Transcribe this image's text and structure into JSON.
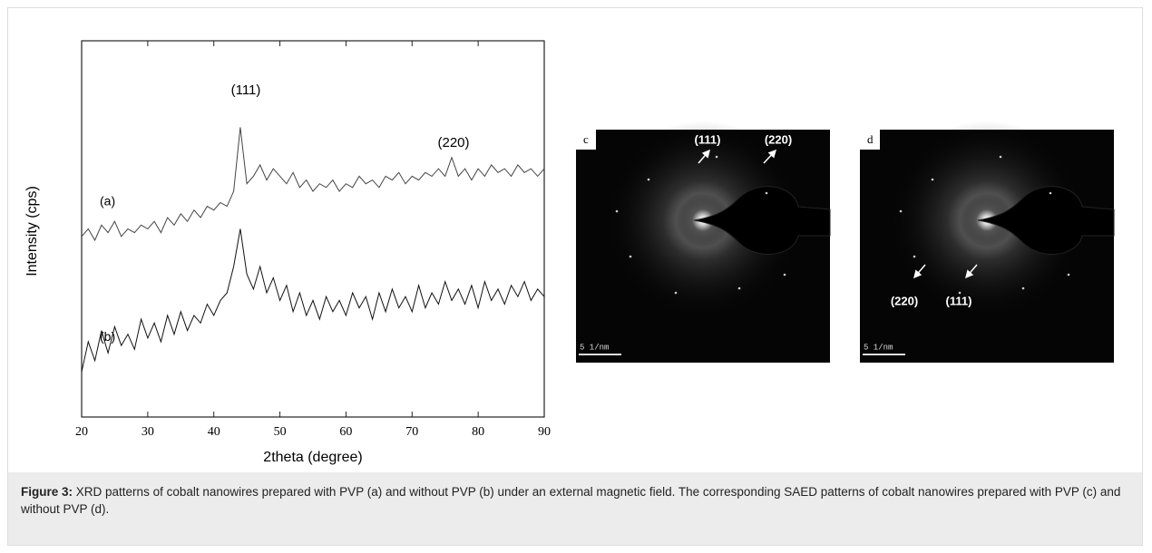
{
  "chart_data": {
    "type": "line",
    "x": [
      20,
      21,
      22,
      23,
      24,
      25,
      26,
      27,
      28,
      29,
      30,
      31,
      32,
      33,
      34,
      35,
      36,
      37,
      38,
      39,
      40,
      41,
      42,
      43,
      44,
      45,
      46,
      47,
      48,
      49,
      50,
      51,
      52,
      53,
      54,
      55,
      56,
      57,
      58,
      59,
      60,
      61,
      62,
      63,
      64,
      65,
      66,
      67,
      68,
      69,
      70,
      71,
      72,
      73,
      74,
      75,
      76,
      77,
      78,
      79,
      80,
      81,
      82,
      83,
      84,
      85,
      86,
      87,
      88,
      89,
      90
    ],
    "series": [
      {
        "name": "(a)",
        "color": "#444444",
        "values": [
          48,
          50,
          47,
          51,
          49,
          52,
          48,
          50,
          49,
          51,
          50,
          52,
          49,
          53,
          51,
          54,
          52,
          55,
          53,
          56,
          55,
          57,
          56,
          60,
          77,
          62,
          64,
          67,
          63,
          66,
          64,
          62,
          65,
          61,
          63,
          60,
          62,
          61,
          63,
          60,
          62,
          61,
          64,
          62,
          63,
          61,
          64,
          63,
          65,
          62,
          64,
          63,
          65,
          64,
          66,
          64,
          69,
          64,
          66,
          63,
          66,
          64,
          67,
          65,
          66,
          64,
          67,
          65,
          66,
          64,
          66
        ]
      },
      {
        "name": "(b)",
        "color": "#111111",
        "values": [
          12,
          20,
          15,
          23,
          17,
          24,
          19,
          22,
          18,
          26,
          21,
          25,
          20,
          27,
          22,
          28,
          23,
          27,
          25,
          30,
          27,
          31,
          33,
          40,
          50,
          38,
          34,
          40,
          33,
          37,
          31,
          35,
          28,
          33,
          27,
          31,
          26,
          32,
          28,
          31,
          27,
          33,
          29,
          32,
          26,
          33,
          28,
          34,
          29,
          32,
          28,
          35,
          29,
          33,
          30,
          36,
          31,
          34,
          30,
          35,
          29,
          36,
          31,
          34,
          30,
          35,
          32,
          36,
          31,
          34,
          32
        ]
      }
    ],
    "xlim": [
      20,
      90
    ],
    "xticks": [
      20,
      30,
      40,
      50,
      60,
      70,
      80,
      90
    ],
    "ylim": [
      0,
      100
    ],
    "xlabel": "2theta (degree)",
    "ylabel": "Intensity (cps)",
    "annotations": [
      "(111)",
      "(220)"
    ]
  },
  "panels": [
    {
      "label": "c",
      "annotations": [
        "(111)",
        "(220)"
      ],
      "scale_bar": "5 1/nm"
    },
    {
      "label": "d",
      "annotations": [
        "(220)",
        "(111)"
      ],
      "scale_bar": "5 1/nm"
    }
  ],
  "caption": {
    "label": "Figure 3:",
    "text": "XRD patterns of cobalt nanowires prepared with PVP (a) and without PVP (b) under an external magnetic field. The corresponding SAED patterns of cobalt nanowires prepared with PVP (c) and without PVP (d)."
  }
}
